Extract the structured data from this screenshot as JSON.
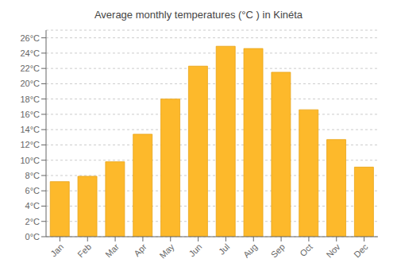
{
  "chart_data": {
    "type": "bar",
    "title": "Average monthly temperatures (°C ) in Kinéta",
    "categories": [
      "Jan",
      "Feb",
      "Mar",
      "Apr",
      "May",
      "Jun",
      "Jul",
      "Aug",
      "Sep",
      "Oct",
      "Nov",
      "Dec"
    ],
    "values": [
      7.2,
      7.9,
      9.8,
      13.4,
      18.0,
      22.3,
      24.9,
      24.6,
      21.5,
      16.6,
      12.7,
      9.1
    ],
    "color": "#FDB92B",
    "ylim": [
      0,
      27
    ],
    "yticks": [
      {
        "value": 0,
        "label": "0°C"
      },
      {
        "value": 2,
        "label": "2°C"
      },
      {
        "value": 4,
        "label": "4°C"
      },
      {
        "value": 6,
        "label": "6°C"
      },
      {
        "value": 8,
        "label": "8°C"
      },
      {
        "value": 10,
        "label": "10°C"
      },
      {
        "value": 12,
        "label": "12°C"
      },
      {
        "value": 14,
        "label": "14°C"
      },
      {
        "value": 16,
        "label": "16°C"
      },
      {
        "value": 18,
        "label": "18°C"
      },
      {
        "value": 20,
        "label": "20°C"
      },
      {
        "value": 22,
        "label": "22°C"
      },
      {
        "value": 24,
        "label": "24°C"
      },
      {
        "value": 26,
        "label": "26°C"
      }
    ],
    "grid": true
  }
}
